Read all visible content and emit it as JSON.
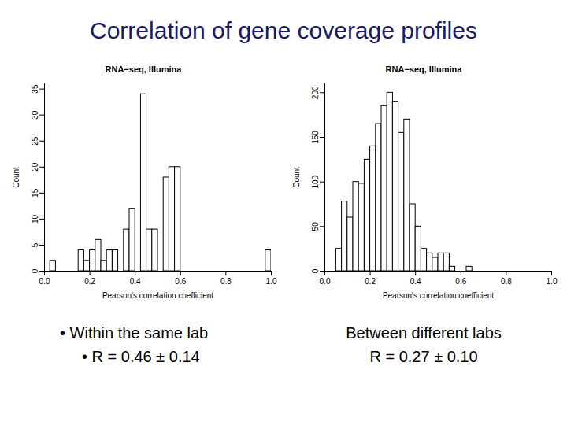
{
  "title": "Correlation of gene coverage profiles",
  "chart_data": [
    {
      "type": "histogram",
      "title": "RNA−seq, Illumina",
      "x_label": "Pearson's correlation coefficient",
      "y_label": "Count",
      "bins": [
        0,
        0.025,
        0.05,
        0.075,
        0.1,
        0.125,
        0.15,
        0.175,
        0.2,
        0.225,
        0.25,
        0.275,
        0.3,
        0.325,
        0.35,
        0.375,
        0.4,
        0.425,
        0.45,
        0.475,
        0.5,
        0.525,
        0.55,
        0.575,
        0.6,
        0.625,
        0.65,
        0.675,
        0.7,
        0.725,
        0.75,
        0.775,
        0.8,
        0.825,
        0.85,
        0.875,
        0.9,
        0.925,
        0.95,
        0.975,
        1
      ],
      "counts": [
        0,
        2,
        0,
        0,
        0,
        0,
        4,
        2,
        4,
        6,
        2,
        4,
        4,
        0,
        8,
        12,
        0,
        34,
        8,
        8,
        0,
        18,
        20,
        20,
        0,
        0,
        0,
        0,
        0,
        0,
        0,
        0,
        0,
        0,
        0,
        0,
        0,
        0,
        0,
        4
      ],
      "xlim": [
        0,
        1
      ],
      "xticks": [
        {
          "value": 0,
          "label": "0.0"
        },
        {
          "value": 0.2,
          "label": "0.2"
        },
        {
          "value": 0.4,
          "label": "0.4"
        },
        {
          "value": 0.6,
          "label": "0.6"
        },
        {
          "value": 0.8,
          "label": "0.8"
        },
        {
          "value": 1,
          "label": "1.0"
        }
      ],
      "ylim": [
        0,
        36
      ],
      "yticks": [
        0,
        5,
        10,
        15,
        20,
        25,
        30,
        35
      ],
      "annotations": [
        "• Within the same lab",
        "• R = 0.46 ± 0.14"
      ]
    },
    {
      "type": "histogram",
      "title": "RNA−seq, Illumina",
      "x_label": "Pearson's correlation coefficient",
      "y_label": "Count",
      "bins": [
        0,
        0.025,
        0.05,
        0.075,
        0.1,
        0.125,
        0.15,
        0.175,
        0.2,
        0.225,
        0.25,
        0.275,
        0.3,
        0.325,
        0.35,
        0.375,
        0.4,
        0.425,
        0.45,
        0.475,
        0.5,
        0.525,
        0.55,
        0.575,
        0.6,
        0.625,
        0.65,
        0.675,
        0.7,
        0.725,
        0.75,
        0.775,
        0.8,
        0.825,
        0.85,
        0.875,
        0.9,
        0.925,
        0.95,
        0.975,
        1
      ],
      "counts": [
        0,
        0,
        25,
        78,
        60,
        100,
        98,
        125,
        140,
        165,
        185,
        200,
        190,
        155,
        170,
        75,
        50,
        25,
        20,
        15,
        20,
        20,
        5,
        0,
        0,
        5,
        0,
        0,
        0,
        0,
        0,
        0,
        0,
        0,
        0,
        0,
        0,
        0,
        0,
        0
      ],
      "xlim": [
        0,
        1
      ],
      "xticks": [
        {
          "value": 0,
          "label": "0.0"
        },
        {
          "value": 0.2,
          "label": "0.2"
        },
        {
          "value": 0.4,
          "label": "0.4"
        },
        {
          "value": 0.6,
          "label": "0.6"
        },
        {
          "value": 0.8,
          "label": "0.8"
        },
        {
          "value": 1,
          "label": "1.0"
        }
      ],
      "ylim": [
        0,
        210
      ],
      "yticks": [
        0,
        50,
        100,
        150,
        200
      ],
      "annotations": [
        "Between different labs",
        "R = 0.27 ± 0.10"
      ]
    }
  ]
}
